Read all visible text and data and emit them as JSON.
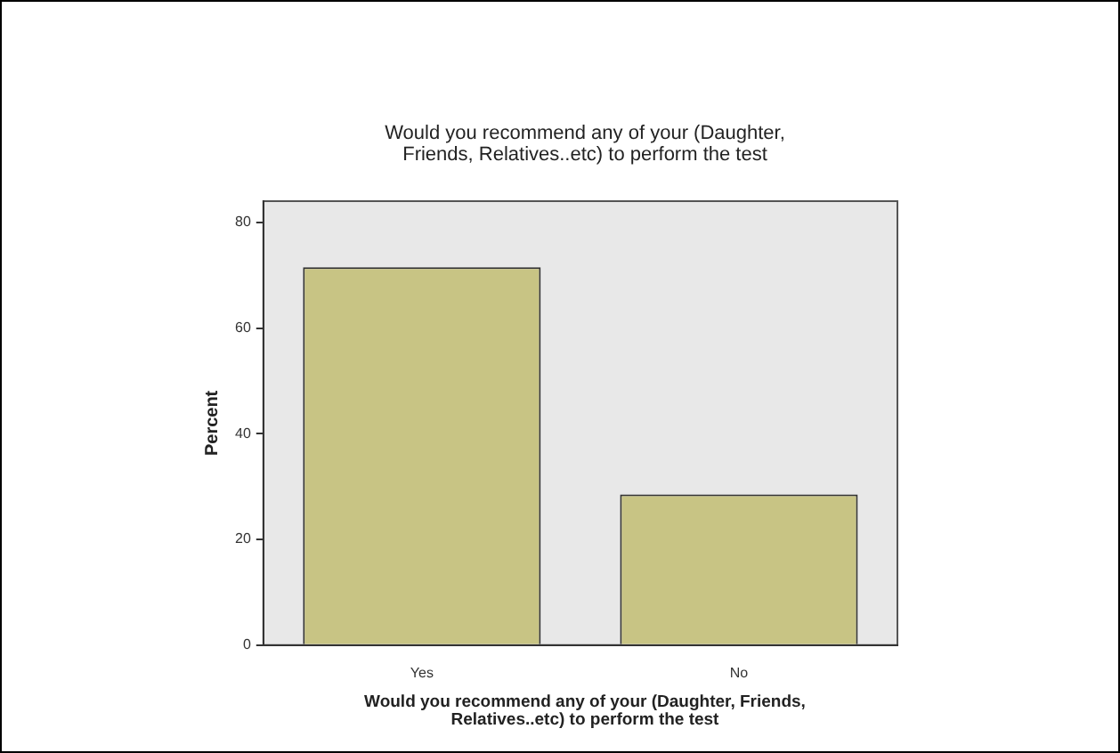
{
  "chart_data": {
    "type": "bar",
    "title": "Would you recommend any of your (Daughter, Friends, Relatives..etc) to perform the test",
    "xlabel": "Would you recommend any of your (Daughter, Friends, Relatives..etc) to perform the test",
    "ylabel": "Percent",
    "categories": [
      "Yes",
      "No"
    ],
    "values": [
      71.5,
      28.5
    ],
    "color": "#c8c484",
    "ylim": [
      0,
      84
    ],
    "yticks": [
      0,
      20,
      40,
      60,
      80
    ],
    "grid": false,
    "legend": false
  }
}
